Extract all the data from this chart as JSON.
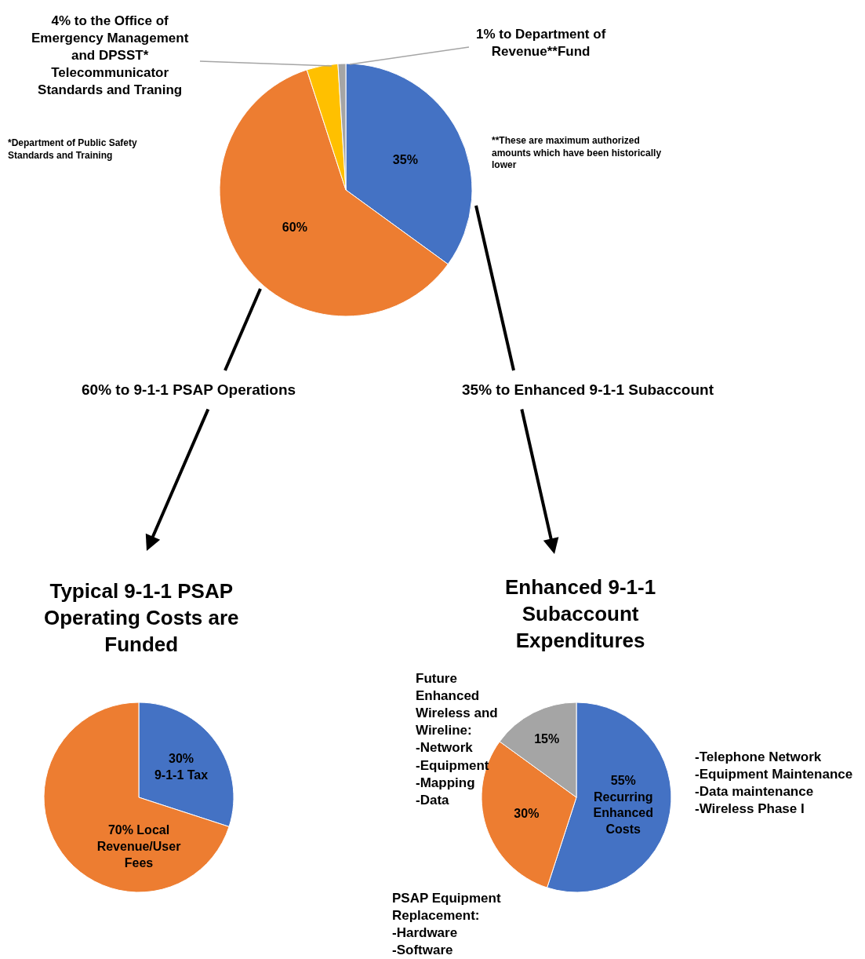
{
  "chart_data": [
    {
      "type": "pie",
      "categories": [
        null,
        null,
        "4% to the Office of\nEmergency Management\nand DPSST*\nTelecommunicator\nStandards and Traning",
        "1% to Department of\nRevenue**Fund"
      ],
      "values": [
        35,
        60,
        4,
        1
      ],
      "colors": [
        "#4472c4",
        "#ed7d31",
        "#ffc000",
        "#a5a5a5"
      ],
      "value_labels": [
        "35%",
        "60%",
        null,
        null
      ],
      "annotations": [
        "*Department of Public Safety\nStandards and Training",
        "**These are maximum authorized\namounts which have been historically\nlower",
        "60% to 9-1-1 PSAP Operations",
        "35% to Enhanced 9-1-1 Subaccount"
      ]
    },
    {
      "type": "pie",
      "title": "Typical 9-1-1 PSAP\nOperating Costs are\nFunded",
      "categories": [
        null,
        null
      ],
      "values": [
        30,
        70
      ],
      "colors": [
        "#4472c4",
        "#ed7d31"
      ],
      "value_labels": [
        "30%\n9-1-1 Tax",
        "70% Local\nRevenue/User\nFees"
      ]
    },
    {
      "type": "pie",
      "title": "Enhanced 9-1-1\nSubaccount\nExpenditures",
      "categories": [
        "-Telephone Network\n-Equipment Maintenance\n-Data maintenance\n-Wireless Phase I",
        "PSAP Equipment\nReplacement:\n-Hardware\n-Software",
        "Future\nEnhanced\nWireless and\nWireline:\n-Network\n-Equipment\n-Mapping\n-Data"
      ],
      "values": [
        55,
        30,
        15
      ],
      "colors": [
        "#4472c4",
        "#ed7d31",
        "#a5a5a5"
      ],
      "value_labels": [
        "55%\nRecurring\nEnhanced\nCosts",
        "30%",
        "15%"
      ]
    }
  ]
}
